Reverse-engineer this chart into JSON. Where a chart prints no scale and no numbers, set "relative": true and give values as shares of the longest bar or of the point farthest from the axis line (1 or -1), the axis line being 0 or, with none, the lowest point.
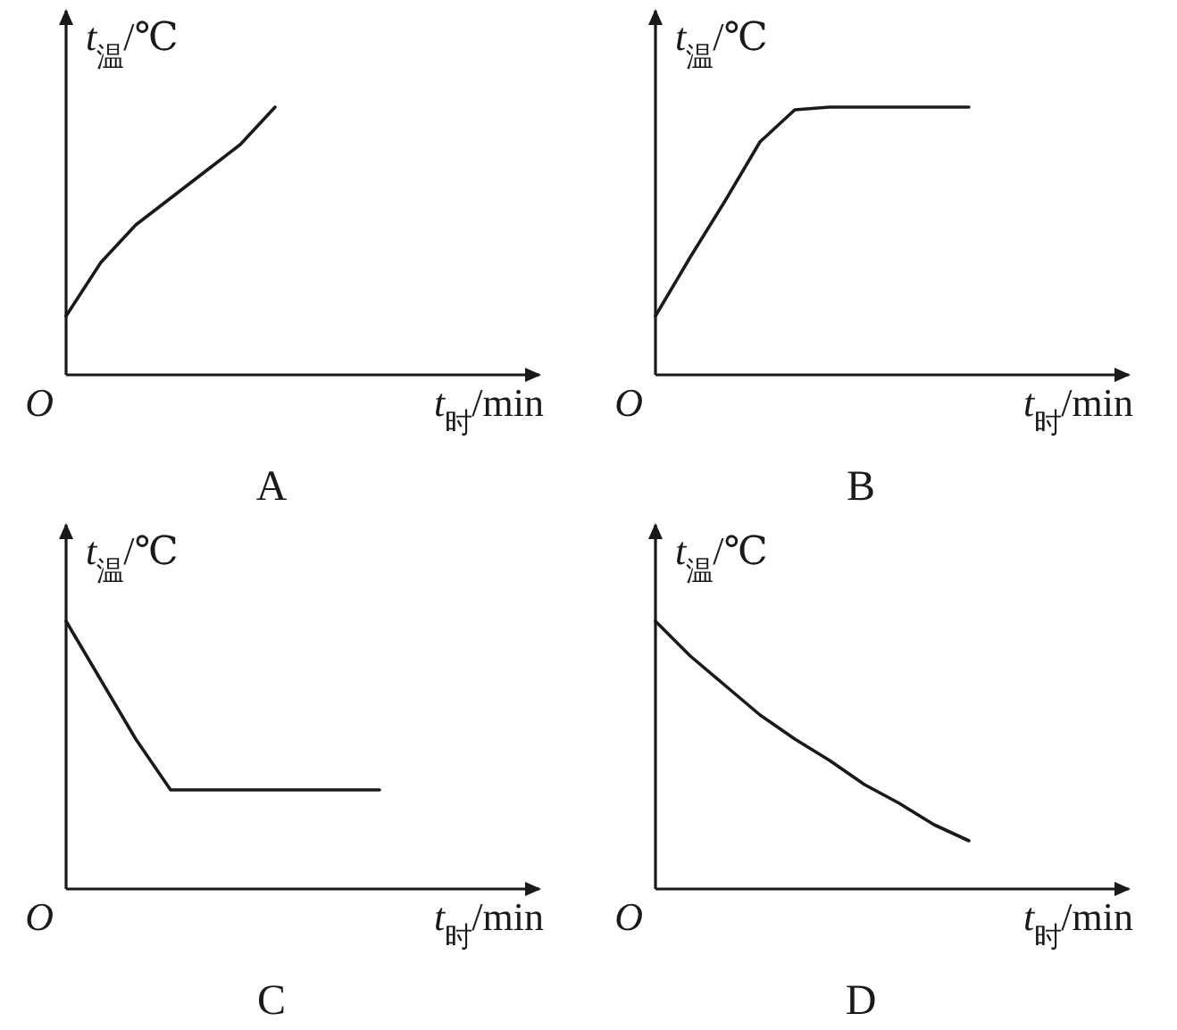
{
  "chart_data": [
    {
      "type": "line",
      "title": "A",
      "xlabel": "*t*$_{时}$/min",
      "ylabel": "*t*$_{温}$/℃",
      "relative": true,
      "annotations": [
        "*O*"
      ],
      "color": "#1a1a1a",
      "categories": [
        null,
        null,
        null,
        null,
        null,
        null,
        null,
        null,
        null,
        null,
        null,
        null,
        null
      ],
      "values": [
        0.22,
        0.42,
        0.56,
        0.66,
        0.76,
        0.86,
        1,
        null,
        null,
        null,
        null,
        null,
        null
      ]
    },
    {
      "type": "line",
      "title": "B",
      "xlabel": "*t*$_{时}$/min",
      "ylabel": "*t*$_{温}$/℃",
      "relative": true,
      "annotations": [
        "*O*"
      ],
      "color": "#1a1a1a",
      "categories": [
        null,
        null,
        null,
        null,
        null,
        null,
        null,
        null,
        null,
        null,
        null,
        null,
        null
      ],
      "values": [
        0.22,
        0.44,
        0.65,
        0.87,
        0.99,
        1,
        1,
        1,
        1,
        1,
        null,
        null,
        null
      ]
    },
    {
      "type": "line",
      "title": "C",
      "xlabel": "*t*$_{时}$/min",
      "ylabel": "*t*$_{温}$/℃",
      "relative": true,
      "annotations": [
        "*O*"
      ],
      "color": "#1a1a1a",
      "categories": [
        null,
        null,
        null,
        null,
        null,
        null,
        null,
        null,
        null,
        null,
        null,
        null,
        null
      ],
      "values": [
        1,
        0.78,
        0.56,
        0.37,
        0.37,
        0.37,
        0.37,
        0.37,
        0.37,
        0.37,
        null,
        null,
        null
      ]
    },
    {
      "type": "line",
      "title": "D",
      "xlabel": "*t*$_{时}$/min",
      "ylabel": "*t*$_{温}$/℃",
      "relative": true,
      "annotations": [
        "*O*"
      ],
      "color": "#1a1a1a",
      "categories": [
        null,
        null,
        null,
        null,
        null,
        null,
        null,
        null,
        null,
        null,
        null,
        null,
        null
      ],
      "values": [
        1,
        0.87,
        0.76,
        0.65,
        0.56,
        0.48,
        0.39,
        0.32,
        0.24,
        0.18,
        null,
        null,
        null
      ]
    }
  ]
}
